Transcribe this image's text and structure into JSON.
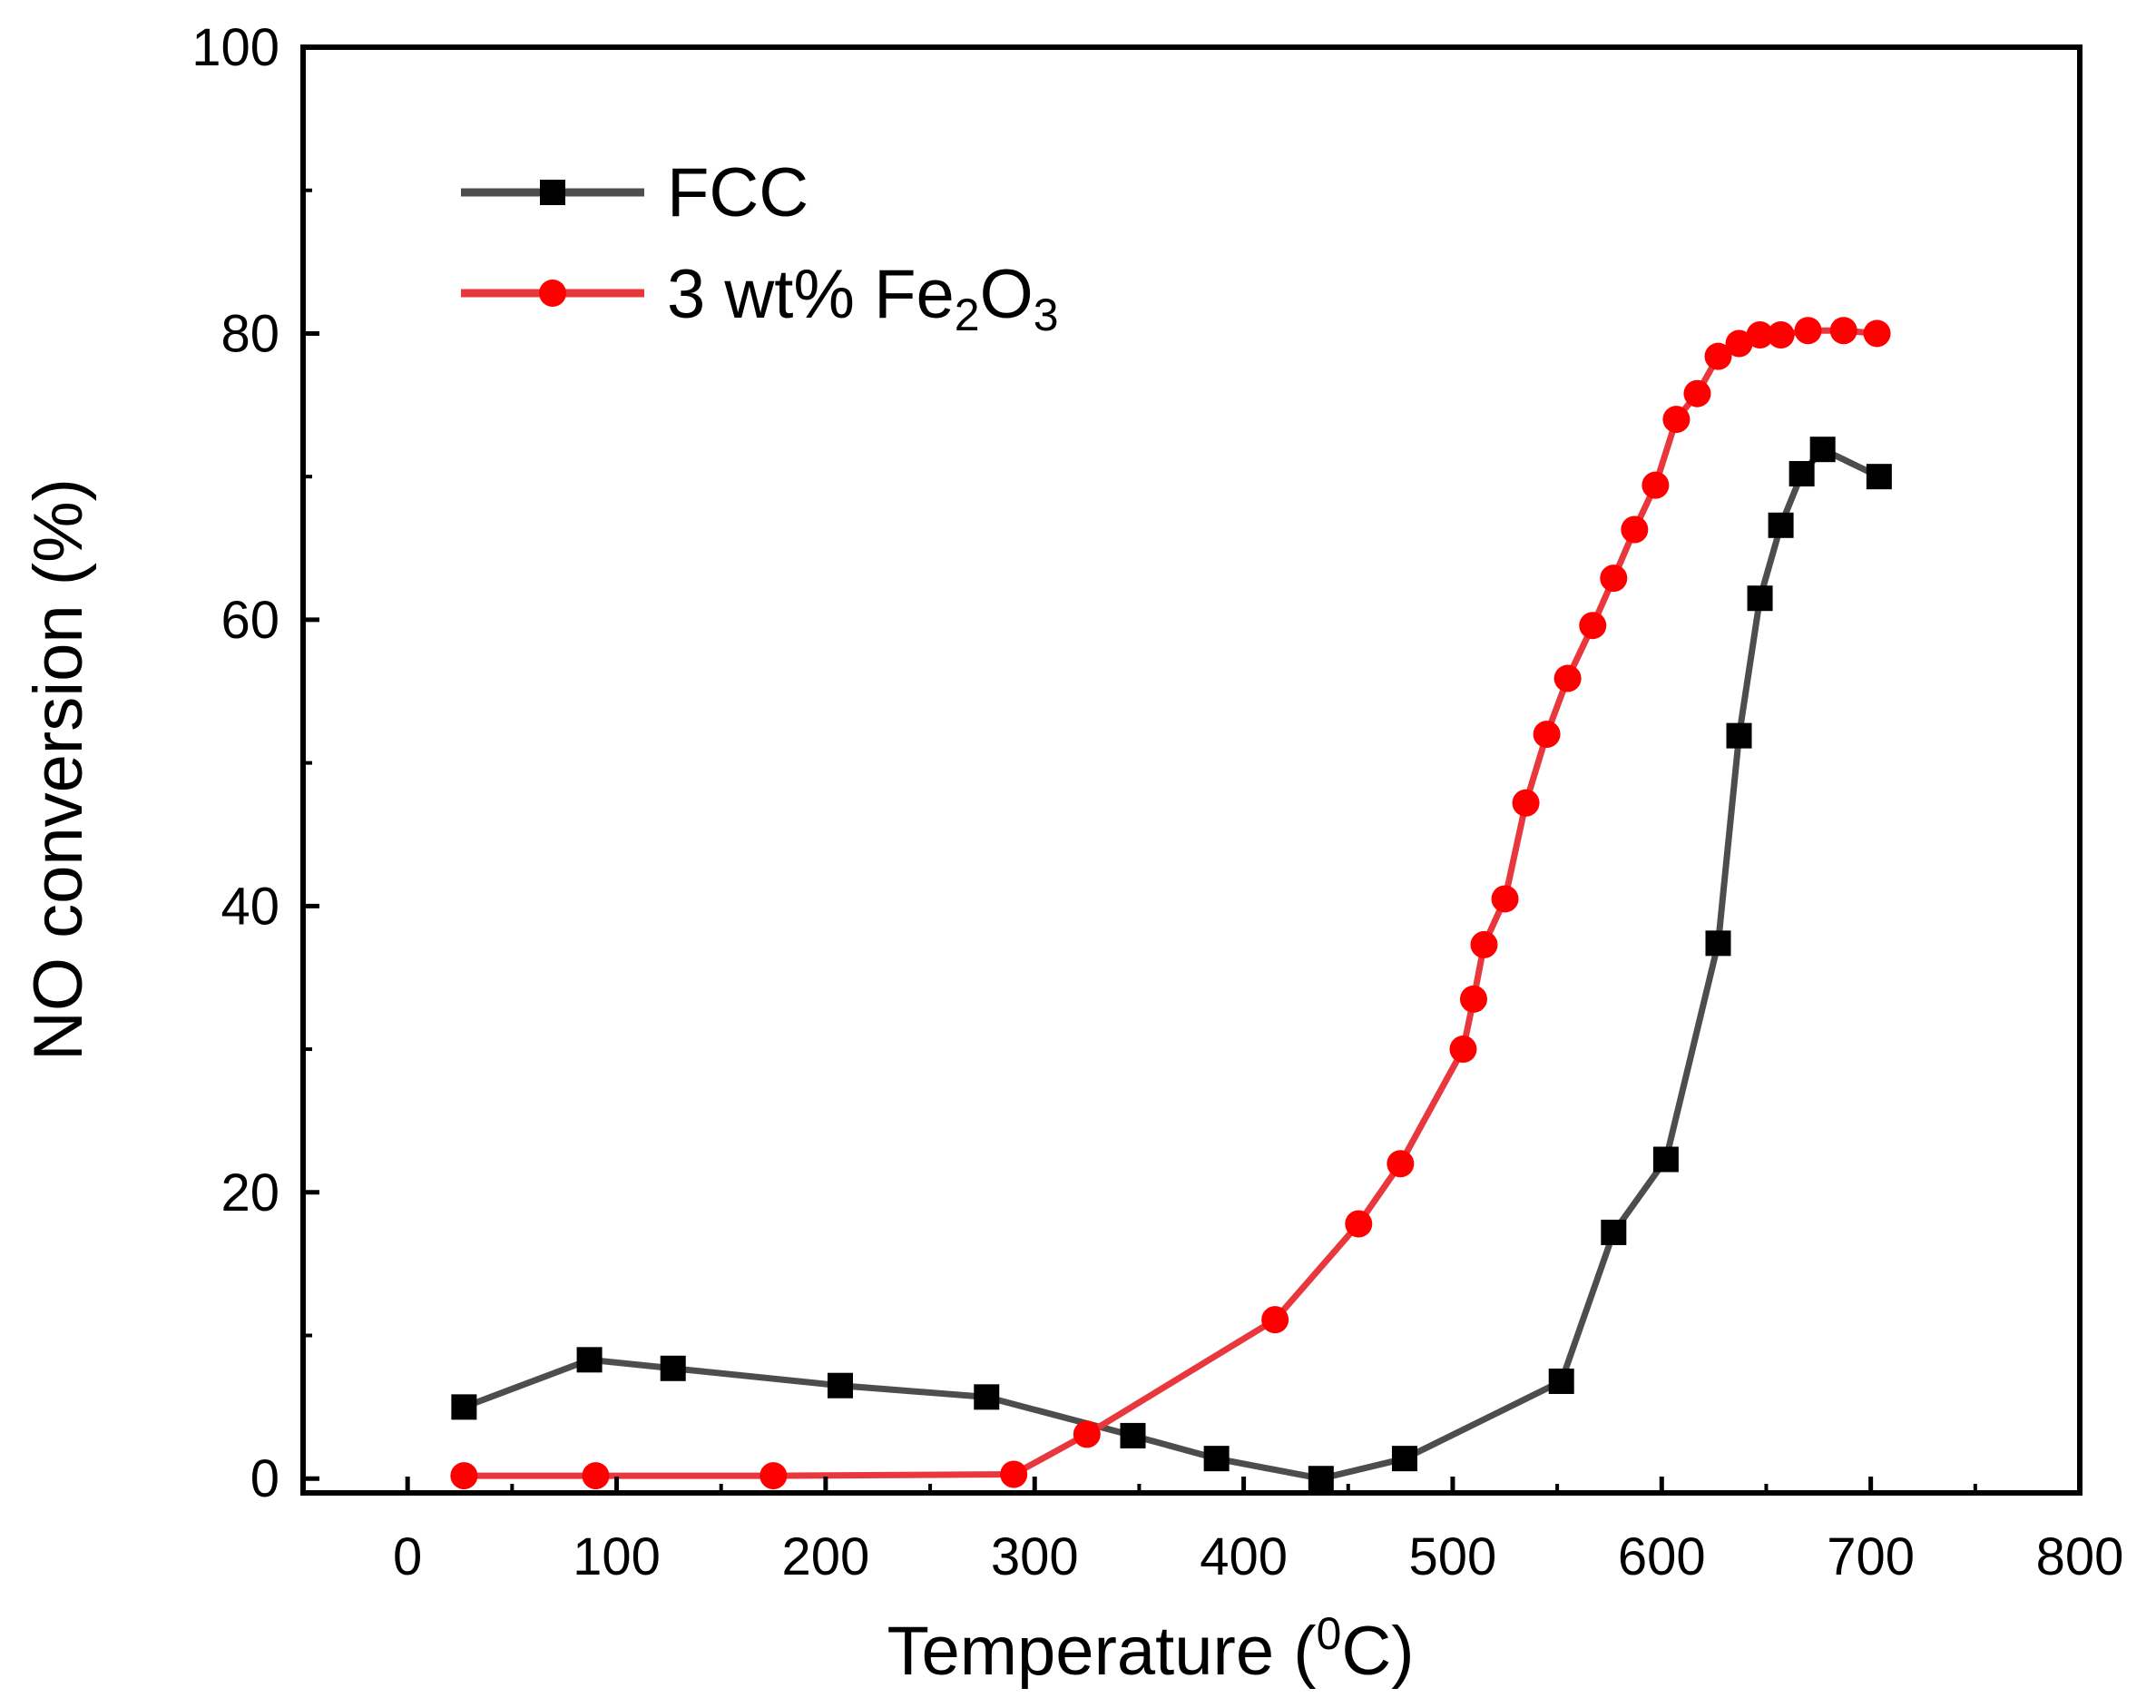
{
  "chart_data": {
    "type": "line",
    "xlabel": "Temperature (0C)",
    "xlabel_main": "Temperature (",
    "xlabel_sup": "0",
    "xlabel_tail": "C)",
    "ylabel": "NO conversion (%)",
    "xlim": [
      -50,
      800
    ],
    "ylim": [
      -1,
      100
    ],
    "xticks": [
      0,
      100,
      200,
      300,
      400,
      500,
      600,
      700,
      800
    ],
    "yticks": [
      0,
      20,
      40,
      60,
      80,
      100
    ],
    "legend_position": "top-left",
    "series": [
      {
        "name": "FCC",
        "legend_label": "FCC",
        "color": "#4d4d4d",
        "marker_color": "#000000",
        "marker": "square",
        "x": [
          27,
          87,
          127,
          207,
          277,
          347,
          387,
          437,
          477,
          552,
          577,
          602,
          627,
          637,
          647,
          657,
          667,
          677,
          704
        ],
        "y": [
          5,
          8.3,
          7.7,
          6.5,
          5.7,
          3,
          1.4,
          0,
          1.4,
          6.8,
          17.2,
          22.3,
          37.4,
          51.9,
          61.5,
          66.6,
          70.2,
          71.9,
          70
        ]
      },
      {
        "name": "3 wt% Fe2O3",
        "legend_label_main": "3 wt% Fe",
        "legend_sub1": "2",
        "legend_mid": "O",
        "legend_sub2": "3",
        "color": "#e8383d",
        "marker_color": "#ff0000",
        "marker": "circle",
        "x": [
          27,
          90,
          175,
          290,
          325,
          415,
          455,
          475,
          505,
          510,
          515,
          525,
          535,
          545,
          555,
          567,
          577,
          587,
          597,
          607,
          617,
          627,
          637,
          647,
          657,
          670,
          687,
          703
        ],
        "y": [
          0.2,
          0.2,
          0.2,
          0.3,
          3.1,
          11.1,
          17.8,
          22,
          30,
          33.5,
          37.3,
          40.5,
          47.2,
          52,
          55.9,
          59.6,
          62.9,
          66.3,
          69.4,
          74,
          75.8,
          78.4,
          79.3,
          79.9,
          79.9,
          80.2,
          80.2,
          80
        ]
      }
    ]
  }
}
